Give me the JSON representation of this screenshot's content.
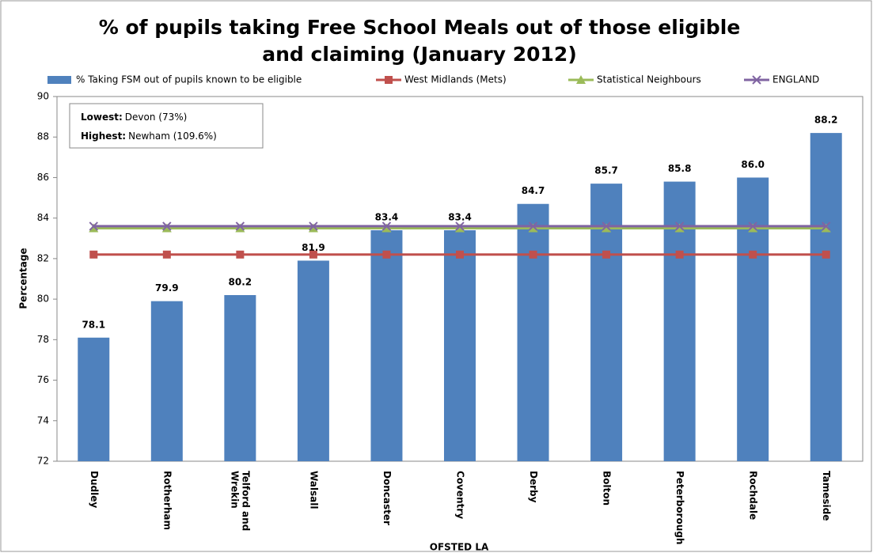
{
  "chart_data": {
    "type": "bar",
    "title": "% of pupils taking Free School Meals out of those eligible and claiming (January 2012)",
    "x_label": "OFSTED LA",
    "y_label": "Percentage",
    "categories": [
      "Dudley",
      "Rotherham",
      "Telford and Wrekin",
      "Walsall",
      "Doncaster",
      "Coventry",
      "Derby",
      "Bolton",
      "Peterborough",
      "Rochdale",
      "Tameside"
    ],
    "series": [
      {
        "name": "% Taking FSM out of pupils known to be eligible",
        "type": "bar",
        "color": "#4f81bd",
        "values": [
          78.1,
          79.9,
          80.2,
          81.9,
          83.4,
          83.4,
          84.7,
          85.7,
          85.8,
          86.0,
          88.2
        ],
        "value_labels": [
          "78.1",
          "79.9",
          "80.2",
          "81.9",
          "83.4",
          "83.4",
          "84.7",
          "85.7",
          "85.8",
          "86.0",
          "88.2"
        ]
      },
      {
        "name": "West Midlands (Mets)",
        "type": "line",
        "marker": "square",
        "color": "#c0504d",
        "values": [
          82.2,
          82.2,
          82.2,
          82.2,
          82.2,
          82.2,
          82.2,
          82.2,
          82.2,
          82.2,
          82.2
        ]
      },
      {
        "name": "Statistical Neighbours",
        "type": "line",
        "marker": "triangle",
        "color": "#9bbb59",
        "values": [
          83.5,
          83.5,
          83.5,
          83.5,
          83.5,
          83.5,
          83.5,
          83.5,
          83.5,
          83.5,
          83.5
        ]
      },
      {
        "name": "ENGLAND",
        "type": "line",
        "marker": "x",
        "color": "#8064a2",
        "values": [
          83.6,
          83.6,
          83.6,
          83.6,
          83.6,
          83.6,
          83.6,
          83.6,
          83.6,
          83.6,
          83.6
        ]
      }
    ],
    "annotations": [
      {
        "label": "Lowest:",
        "text": "Devon (73%)"
      },
      {
        "label": "Highest:",
        "text": "Newham (109.6%)"
      }
    ],
    "ylim": [
      72,
      90
    ],
    "yticks": [
      72,
      74,
      76,
      78,
      80,
      82,
      84,
      86,
      88,
      90
    ],
    "grid": false,
    "legend": "top"
  }
}
